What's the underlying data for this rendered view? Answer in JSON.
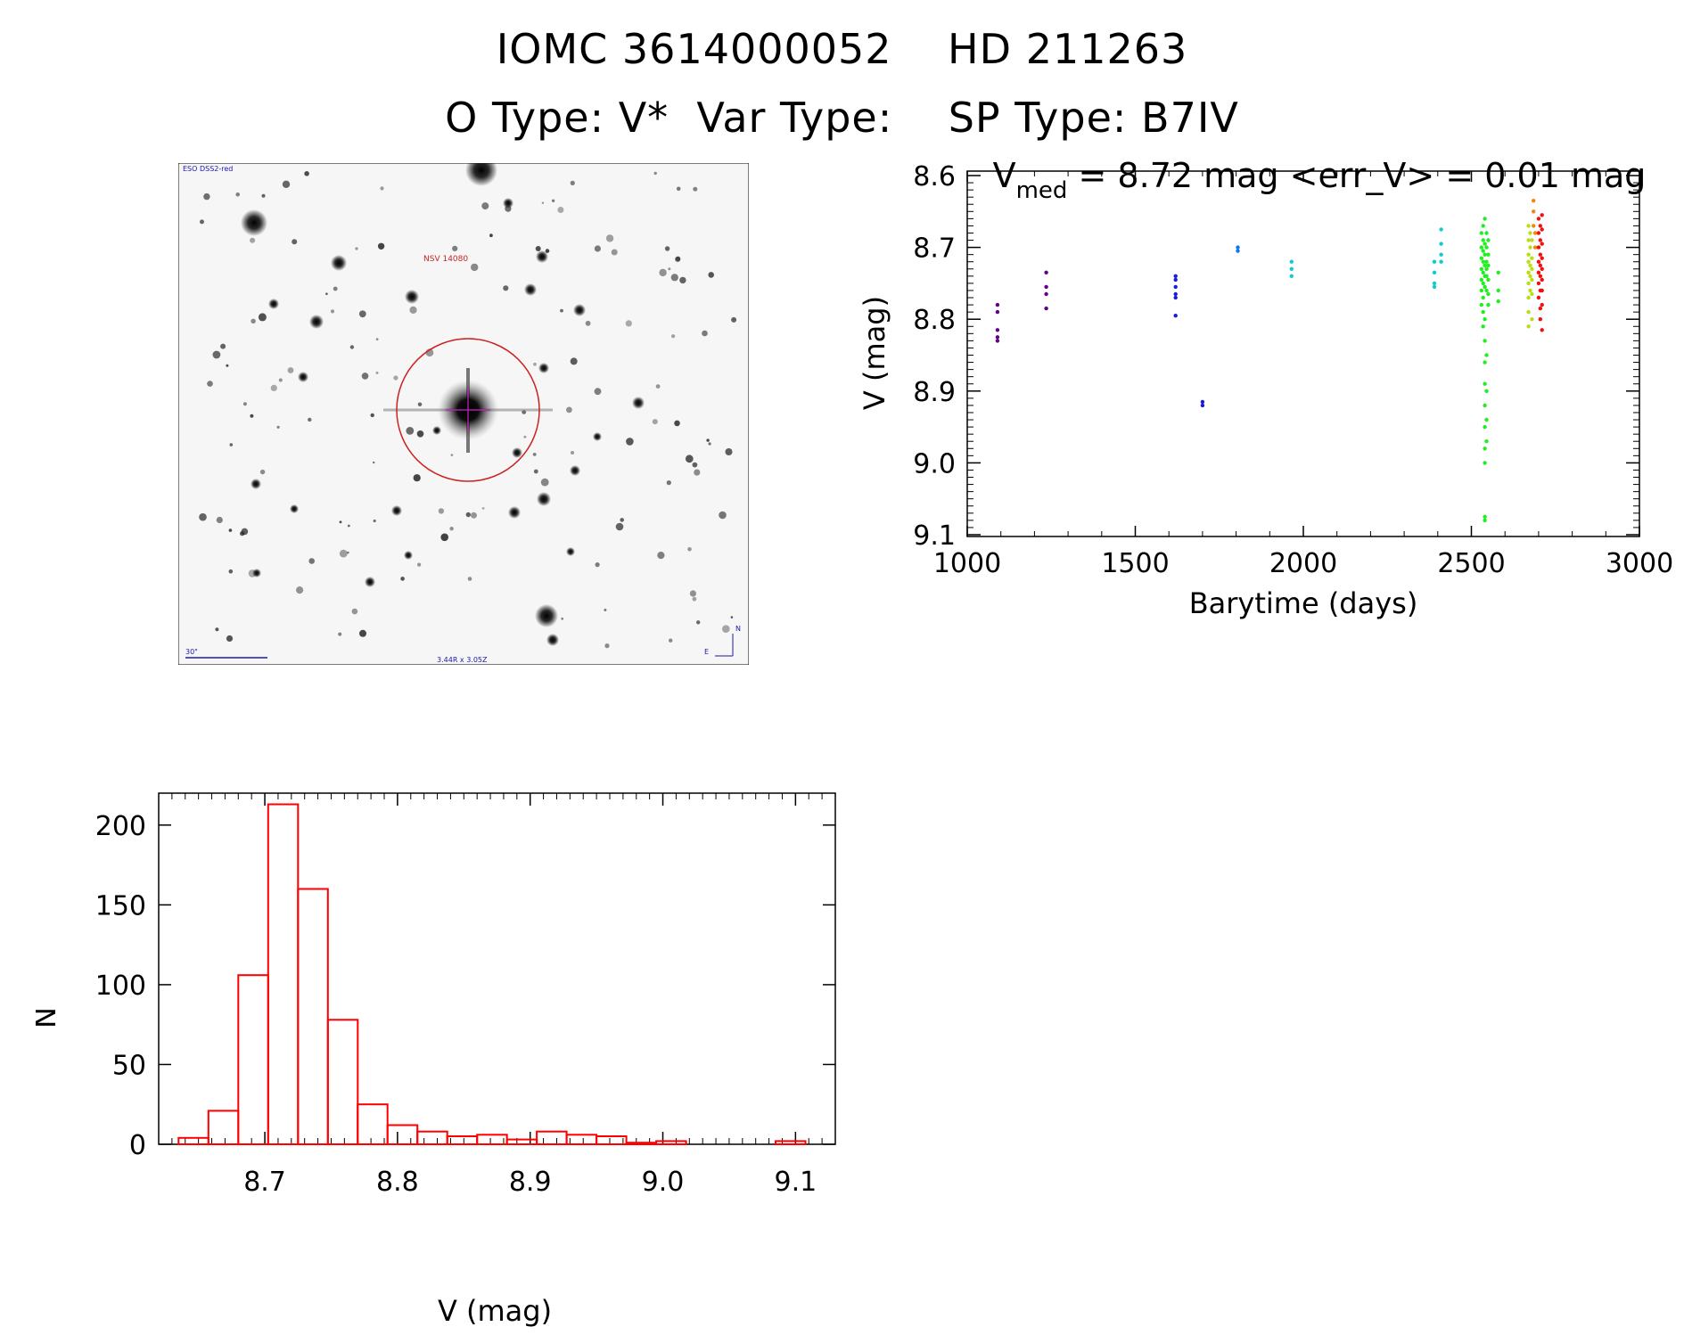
{
  "header": {
    "line1": "IOMC 3614000052    HD 211263",
    "line2": "O Type: V*  Var Type:    SP Type: B7IV"
  },
  "finder": {
    "survey": "ESO DSS2-red",
    "target": "NSV 14080",
    "scale": "30\"",
    "fov": "3.44R x 3.05Z",
    "north": "N",
    "east": "E"
  },
  "chart_data": [
    {
      "type": "scatter",
      "title_main": "V",
      "title_sub": "med",
      "title_rest": " = 8.72 mag <err_V> = 0.01 mag",
      "xlabel": "Barytime (days)",
      "ylabel": "V (mag)",
      "xlim": [
        1000,
        3000
      ],
      "ylim": [
        9.1,
        8.6
      ],
      "xticks": [
        "1000",
        "1500",
        "2000",
        "2500",
        "3000"
      ],
      "yticks": [
        "8.6",
        "8.7",
        "8.8",
        "8.9",
        "9.0",
        "9.1"
      ],
      "groups": [
        {
          "color": "#660088",
          "points": [
            [
              1090,
              8.78
            ],
            [
              1090,
              8.79
            ],
            [
              1090,
              8.815
            ],
            [
              1090,
              8.825
            ],
            [
              1090,
              8.83
            ],
            [
              1235,
              8.735
            ],
            [
              1235,
              8.755
            ],
            [
              1235,
              8.765
            ],
            [
              1235,
              8.785
            ]
          ]
        },
        {
          "color": "#1a1add",
          "points": [
            [
              1620,
              8.74
            ],
            [
              1620,
              8.745
            ],
            [
              1620,
              8.755
            ],
            [
              1620,
              8.765
            ],
            [
              1620,
              8.77
            ],
            [
              1620,
              8.795
            ],
            [
              1700,
              8.915
            ],
            [
              1700,
              8.92
            ]
          ]
        },
        {
          "color": "#1177ee",
          "points": [
            [
              1805,
              8.7
            ],
            [
              1805,
              8.705
            ]
          ]
        },
        {
          "color": "#11cccc",
          "points": [
            [
              1965,
              8.72
            ],
            [
              1965,
              8.73
            ],
            [
              1965,
              8.74
            ],
            [
              2390,
              8.72
            ],
            [
              2390,
              8.735
            ],
            [
              2390,
              8.75
            ],
            [
              2390,
              8.755
            ],
            [
              2410,
              8.675
            ],
            [
              2410,
              8.695
            ],
            [
              2410,
              8.71
            ],
            [
              2410,
              8.72
            ]
          ]
        },
        {
          "color": "#22ee22",
          "points": [
            [
              2530,
              8.68
            ],
            [
              2530,
              8.7
            ],
            [
              2530,
              8.715
            ],
            [
              2530,
              8.73
            ],
            [
              2530,
              8.745
            ],
            [
              2530,
              8.76
            ],
            [
              2530,
              8.78
            ],
            [
              2535,
              8.67
            ],
            [
              2535,
              8.69
            ],
            [
              2535,
              8.705
            ],
            [
              2535,
              8.72
            ],
            [
              2535,
              8.735
            ],
            [
              2535,
              8.75
            ],
            [
              2535,
              8.77
            ],
            [
              2535,
              8.79
            ],
            [
              2535,
              8.81
            ],
            [
              2540,
              8.66
            ],
            [
              2540,
              8.695
            ],
            [
              2540,
              8.71
            ],
            [
              2540,
              8.725
            ],
            [
              2540,
              8.74
            ],
            [
              2540,
              8.755
            ],
            [
              2540,
              8.8
            ],
            [
              2540,
              8.83
            ],
            [
              2540,
              8.86
            ],
            [
              2540,
              8.89
            ],
            [
              2540,
              8.92
            ],
            [
              2540,
              8.95
            ],
            [
              2540,
              8.98
            ],
            [
              2540,
              9.0
            ],
            [
              2540,
              9.075
            ],
            [
              2540,
              9.08
            ],
            [
              2545,
              8.68
            ],
            [
              2545,
              8.7
            ],
            [
              2545,
              8.72
            ],
            [
              2545,
              8.73
            ],
            [
              2545,
              8.74
            ],
            [
              2545,
              8.76
            ],
            [
              2545,
              8.85
            ],
            [
              2545,
              8.9
            ],
            [
              2545,
              8.94
            ],
            [
              2545,
              8.97
            ],
            [
              2550,
              8.69
            ],
            [
              2550,
              8.71
            ],
            [
              2550,
              8.725
            ],
            [
              2550,
              8.745
            ],
            [
              2550,
              8.765
            ],
            [
              2550,
              8.78
            ],
            [
              2580,
              8.735
            ],
            [
              2580,
              8.76
            ],
            [
              2580,
              8.775
            ]
          ]
        },
        {
          "color": "#bbdd11",
          "points": [
            [
              2670,
              8.67
            ],
            [
              2670,
              8.69
            ],
            [
              2670,
              8.71
            ],
            [
              2670,
              8.72
            ],
            [
              2670,
              8.735
            ],
            [
              2670,
              8.75
            ],
            [
              2670,
              8.77
            ],
            [
              2670,
              8.79
            ],
            [
              2670,
              8.81
            ],
            [
              2675,
              8.68
            ],
            [
              2675,
              8.7
            ],
            [
              2675,
              8.725
            ],
            [
              2675,
              8.74
            ],
            [
              2675,
              8.76
            ],
            [
              2680,
              8.69
            ],
            [
              2680,
              8.715
            ],
            [
              2680,
              8.73
            ],
            [
              2680,
              8.745
            ],
            [
              2680,
              8.765
            ],
            [
              2680,
              8.8
            ]
          ]
        },
        {
          "color": "#ee8811",
          "points": [
            [
              2685,
              8.635
            ],
            [
              2685,
              8.65
            ],
            [
              2685,
              8.67
            ],
            [
              2690,
              8.68
            ],
            [
              2690,
              8.7
            ]
          ]
        },
        {
          "color": "#ee1111",
          "points": [
            [
              2700,
              8.66
            ],
            [
              2700,
              8.68
            ],
            [
              2700,
              8.7
            ],
            [
              2700,
              8.72
            ],
            [
              2700,
              8.735
            ],
            [
              2700,
              8.75
            ],
            [
              2700,
              8.77
            ],
            [
              2705,
              8.67
            ],
            [
              2705,
              8.69
            ],
            [
              2705,
              8.71
            ],
            [
              2705,
              8.725
            ],
            [
              2705,
              8.74
            ],
            [
              2705,
              8.76
            ],
            [
              2705,
              8.785
            ],
            [
              2705,
              8.8
            ],
            [
              2710,
              8.655
            ],
            [
              2710,
              8.675
            ],
            [
              2710,
              8.695
            ],
            [
              2710,
              8.715
            ],
            [
              2710,
              8.73
            ],
            [
              2710,
              8.745
            ],
            [
              2710,
              8.76
            ],
            [
              2710,
              8.78
            ],
            [
              2710,
              8.815
            ]
          ]
        }
      ]
    },
    {
      "type": "bar",
      "xlabel": "V (mag)",
      "ylabel": "N",
      "xlim": [
        8.62,
        9.13
      ],
      "ylim": [
        0,
        220
      ],
      "xticks": [
        "8.7",
        "8.8",
        "8.9",
        "9.0",
        "9.1"
      ],
      "yticks": [
        "0",
        "50",
        "100",
        "150",
        "200"
      ],
      "bin_width": 0.0225,
      "bin_starts": [
        8.635,
        8.6575,
        8.68,
        8.7025,
        8.725,
        8.7475,
        8.77,
        8.7925,
        8.815,
        8.8375,
        8.86,
        8.8825,
        8.905,
        8.9275,
        8.95,
        8.9725,
        8.995,
        9.0175,
        9.04,
        9.0625,
        9.085
      ],
      "values": [
        4,
        21,
        106,
        213,
        160,
        78,
        25,
        12,
        8,
        5,
        6,
        3,
        8,
        6,
        5,
        1,
        2,
        0,
        0,
        0,
        2
      ],
      "bar_color": "#ff0000"
    }
  ]
}
